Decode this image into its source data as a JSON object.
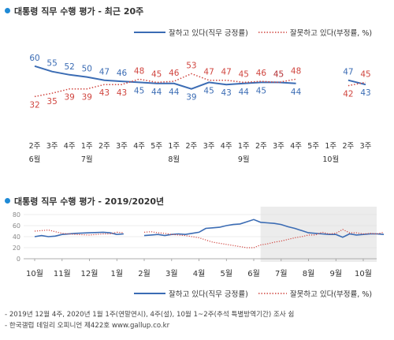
{
  "chart_data": [
    {
      "type": "line",
      "title": "대통령 직무 수행 평가 - 최근 20주",
      "x_weeks": [
        "2주",
        "3주",
        "4주",
        "1주",
        "2주",
        "3주",
        "4주",
        "5주",
        "1주",
        "2주",
        "3주",
        "4주",
        "1주",
        "2주",
        "3주",
        "4주",
        "5주",
        "1주",
        "2주",
        "3주"
      ],
      "x_months": [
        {
          "label": "6월",
          "at": 0
        },
        {
          "label": "7월",
          "at": 3
        },
        {
          "label": "8월",
          "at": 8
        },
        {
          "label": "9월",
          "at": 12
        },
        {
          "label": "10월",
          "at": 17
        }
      ],
      "series": [
        {
          "name": "잘하고 있다(직무 긍정률)",
          "color": "#3b6cb4",
          "style": "solid",
          "values": [
            60,
            55,
            52,
            50,
            47,
            46,
            45,
            44,
            44,
            39,
            45,
            43,
            44,
            45,
            45,
            44,
            null,
            null,
            47,
            43
          ]
        },
        {
          "name": "잘못하고 있다(부정률, %)",
          "color": "#d0453f",
          "style": "dotted",
          "values": [
            32,
            35,
            39,
            39,
            43,
            43,
            48,
            45,
            46,
            53,
            47,
            47,
            45,
            46,
            45,
            48,
            null,
            null,
            42,
            45
          ]
        }
      ],
      "ylim": [
        25,
        70
      ]
    },
    {
      "type": "line",
      "title": "대통령 직무 수행 평가 - 2019/2020년",
      "x_months": [
        "10월",
        "11월",
        "12월",
        "1월",
        "2월",
        "3월",
        "4월",
        "5월",
        "6월",
        "7월",
        "8월",
        "9월",
        "10월"
      ],
      "y_ticks": [
        0,
        20,
        40,
        60,
        80
      ],
      "ylim": [
        0,
        80
      ],
      "highlight_range": [
        8.25,
        12.3
      ],
      "series": [
        {
          "name": "잘하고 있다(직무 긍정률)",
          "color": "#3b6cb4",
          "style": "solid",
          "points": [
            [
              0.0,
              40
            ],
            [
              0.25,
              42
            ],
            [
              0.5,
              40
            ],
            [
              0.75,
              41
            ],
            [
              1.0,
              44
            ],
            [
              1.5,
              46
            ],
            [
              2.0,
              47
            ],
            [
              2.5,
              48
            ],
            [
              2.75,
              47
            ],
            [
              3.0,
              44
            ],
            [
              null,
              null
            ],
            [
              3.0,
              44
            ],
            [
              3.25,
              45
            ],
            [
              null,
              null
            ],
            [
              4.0,
              42
            ],
            [
              4.25,
              43
            ],
            [
              4.5,
              44
            ],
            [
              4.75,
              42
            ],
            [
              5.0,
              44
            ],
            [
              5.25,
              45
            ],
            [
              5.5,
              44
            ],
            [
              5.75,
              46
            ],
            [
              6.0,
              48
            ],
            [
              6.25,
              55
            ],
            [
              6.5,
              56
            ],
            [
              6.75,
              57
            ],
            [
              7.0,
              60
            ],
            [
              7.25,
              62
            ],
            [
              7.5,
              63
            ],
            [
              7.75,
              67
            ],
            [
              8.0,
              71
            ],
            [
              8.25,
              66
            ],
            [
              8.5,
              65
            ],
            [
              8.75,
              64
            ],
            [
              9.0,
              62
            ],
            [
              9.25,
              58
            ],
            [
              9.5,
              55
            ],
            [
              9.75,
              51
            ],
            [
              10.0,
              47
            ],
            [
              10.25,
              46
            ],
            [
              10.5,
              45
            ],
            [
              10.75,
              44
            ],
            [
              11.0,
              44
            ],
            [
              11.25,
              39
            ],
            [
              11.5,
              45
            ],
            [
              11.75,
              43
            ],
            [
              12.0,
              44
            ],
            [
              12.25,
              45
            ],
            [
              12.5,
              45
            ],
            [
              12.75,
              44
            ],
            [
              null,
              null
            ],
            [
              13.25,
              47
            ],
            [
              13.5,
              43
            ]
          ]
        },
        {
          "name": "잘못하고 있다(부정률, %)",
          "color": "#d0453f",
          "style": "dotted",
          "points": [
            [
              0.0,
              50
            ],
            [
              0.25,
              51
            ],
            [
              0.5,
              52
            ],
            [
              0.75,
              49
            ],
            [
              1.0,
              46
            ],
            [
              1.5,
              44
            ],
            [
              2.0,
              43
            ],
            [
              2.5,
              45
            ],
            [
              2.75,
              45
            ],
            [
              3.0,
              48
            ],
            [
              null,
              null
            ],
            [
              3.0,
              48
            ],
            [
              3.25,
              47
            ],
            [
              null,
              null
            ],
            [
              4.0,
              48
            ],
            [
              4.25,
              49
            ],
            [
              4.5,
              47
            ],
            [
              4.75,
              46
            ],
            [
              5.0,
              44
            ],
            [
              5.25,
              43
            ],
            [
              5.5,
              42
            ],
            [
              5.75,
              40
            ],
            [
              6.0,
              38
            ],
            [
              6.25,
              34
            ],
            [
              6.5,
              30
            ],
            [
              6.75,
              28
            ],
            [
              7.0,
              26
            ],
            [
              7.25,
              24
            ],
            [
              7.5,
              22
            ],
            [
              7.75,
              20
            ],
            [
              8.0,
              20
            ],
            [
              8.25,
              25
            ],
            [
              8.5,
              27
            ],
            [
              8.75,
              30
            ],
            [
              9.0,
              32
            ],
            [
              9.25,
              35
            ],
            [
              9.5,
              38
            ],
            [
              9.75,
              40
            ],
            [
              10.0,
              43
            ],
            [
              10.25,
              43
            ],
            [
              10.5,
              48
            ],
            [
              10.75,
              45
            ],
            [
              11.0,
              46
            ],
            [
              11.25,
              53
            ],
            [
              11.5,
              47
            ],
            [
              11.75,
              47
            ],
            [
              12.0,
              45
            ],
            [
              12.25,
              46
            ],
            [
              12.5,
              45
            ],
            [
              12.75,
              48
            ],
            [
              null,
              null
            ],
            [
              13.25,
              42
            ],
            [
              13.5,
              45
            ]
          ]
        }
      ]
    }
  ],
  "legend": {
    "positive": "잘하고 있다(직무 긍정률)",
    "negative": "잘못하고 있다(부정률, %)"
  },
  "notes": {
    "line1": "- 2019년 12월 4주, 2020년 1월 1주(연말연시), 4주(설), 10월 1~2주(추석 특별방역기간) 조사 쉼",
    "line2": "- 한국갤럽 데일리 오피니언 제422호 www.gallup.co.kr"
  }
}
